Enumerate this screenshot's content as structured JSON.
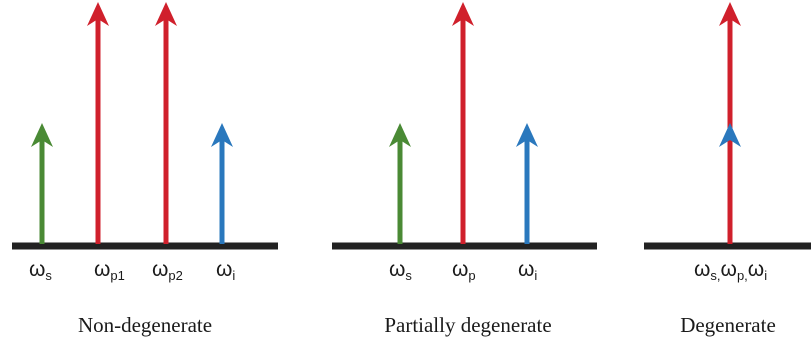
{
  "colors": {
    "signal": "#4a8a35",
    "pump": "#d0202c",
    "idler": "#2a78bd",
    "baseline": "#222222"
  },
  "panels": [
    {
      "caption": "Non-degenerate",
      "arrows": [
        {
          "role": "signal",
          "level": "short",
          "sym": "ω",
          "sub": "s"
        },
        {
          "role": "pump",
          "level": "tall",
          "sym": "ω",
          "sub": "p1"
        },
        {
          "role": "pump",
          "level": "tall",
          "sym": "ω",
          "sub": "p2"
        },
        {
          "role": "idler",
          "level": "short",
          "sym": "ω",
          "sub": "i"
        }
      ]
    },
    {
      "caption": "Partially degenerate",
      "arrows": [
        {
          "role": "signal",
          "level": "short",
          "sym": "ω",
          "sub": "s"
        },
        {
          "role": "pump",
          "level": "tall",
          "sym": "ω",
          "sub": "p"
        },
        {
          "role": "idler",
          "level": "short",
          "sym": "ω",
          "sub": "i"
        }
      ]
    },
    {
      "caption": "Degenerate",
      "arrows": [
        {
          "role": "pump",
          "level": "tall",
          "overlay": "idler"
        }
      ],
      "combined_label": [
        {
          "sym": "ω",
          "sub": "s,"
        },
        {
          "sym": "ω",
          "sub": "p,"
        },
        {
          "sym": "ω",
          "sub": "i"
        }
      ]
    }
  ]
}
